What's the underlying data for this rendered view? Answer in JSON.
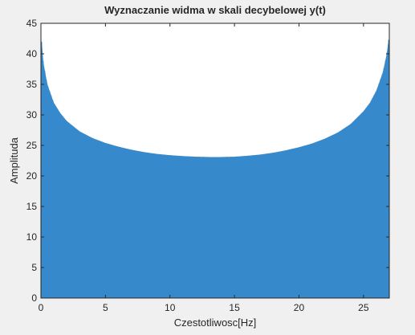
{
  "chart_data": {
    "type": "bar",
    "title": "Wyznaczanie widma w skali decybelowej y(t)",
    "xlabel": "Czestotliwosc[Hz]",
    "ylabel": "Amplituda",
    "xlim": [
      0,
      27
    ],
    "ylim": [
      0,
      45
    ],
    "xticks": [
      0,
      5,
      10,
      15,
      20,
      25
    ],
    "yticks": [
      0,
      5,
      10,
      15,
      20,
      25,
      30,
      35,
      40,
      45
    ],
    "grid": false,
    "legend": "none",
    "bar_color": "#3a8fd2",
    "sample_points": {
      "x": [
        0.05,
        0.2,
        0.5,
        1,
        1.5,
        2,
        3,
        4,
        5,
        6,
        7,
        8,
        9,
        10,
        11,
        12,
        13,
        13.5,
        14,
        15,
        16,
        17,
        18,
        19,
        20,
        21,
        22,
        23,
        24,
        25,
        25.5,
        26,
        26.5,
        26.8,
        26.95
      ],
      "y": [
        42.3,
        38.5,
        35.0,
        32.0,
        30.3,
        29.0,
        27.3,
        26.2,
        25.4,
        24.8,
        24.3,
        23.9,
        23.6,
        23.4,
        23.25,
        23.15,
        23.1,
        23.1,
        23.1,
        23.15,
        23.3,
        23.5,
        23.8,
        24.2,
        24.7,
        25.3,
        26.1,
        27.1,
        28.5,
        30.6,
        32.0,
        34.0,
        37.0,
        40.0,
        42.5
      ]
    }
  }
}
